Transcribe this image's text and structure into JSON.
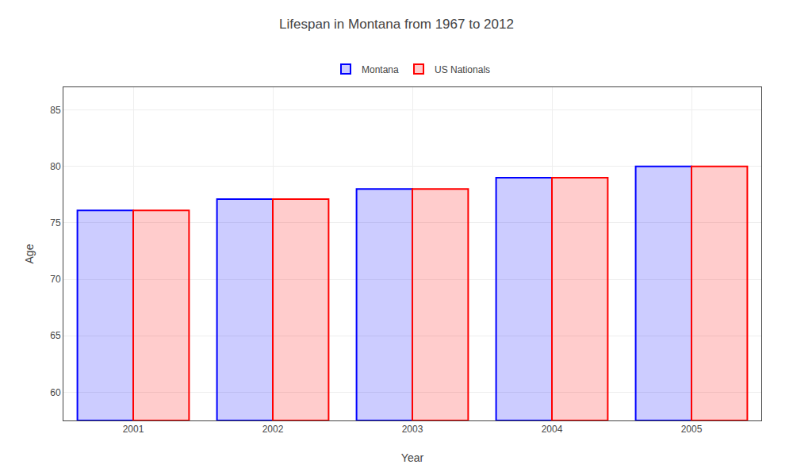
{
  "chart_data": {
    "type": "bar",
    "title": "Lifespan in Montana from 1967 to 2012",
    "x_label": "Year",
    "y_label": "Age",
    "categories": [
      "2001",
      "2002",
      "2003",
      "2004",
      "2005"
    ],
    "series": [
      {
        "name": "Montana",
        "color": "#0000ff",
        "values": [
          76.1,
          77.1,
          78.0,
          79.0,
          80.0
        ]
      },
      {
        "name": "US Nationals",
        "color": "#ff0000",
        "values": [
          76.1,
          77.1,
          78.0,
          79.0,
          80.0
        ]
      }
    ],
    "ylim": [
      57.5,
      87
    ],
    "yticks": [
      60,
      65,
      70,
      75,
      80,
      85
    ],
    "grid": true,
    "legend": "top"
  }
}
